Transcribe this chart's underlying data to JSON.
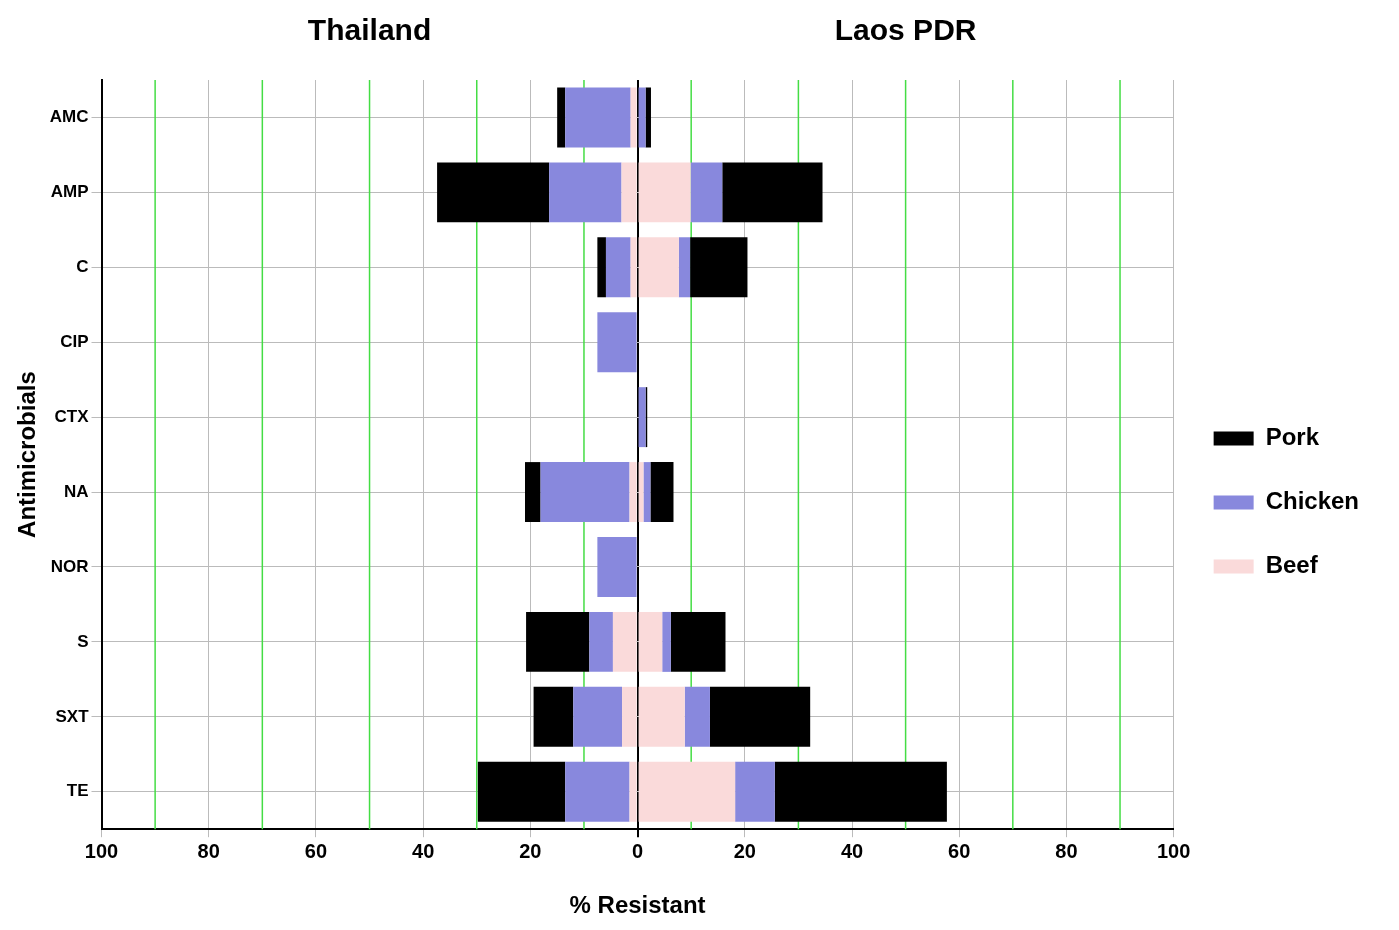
{
  "chart_data": {
    "type": "bar",
    "orientation": "horizontal",
    "stacked": true,
    "annotations": [
      "Thailand",
      "Laos PDR"
    ],
    "xlabel": "% Resistant",
    "ylabel": "Antimicrobials",
    "categories": [
      "AMC",
      "AMP",
      "C",
      "CIP",
      "CTX",
      "NA",
      "NOR",
      "S",
      "SXT",
      "TE"
    ],
    "series": [
      {
        "name": "Beef",
        "color": "#fadada",
        "values": [
          null,
          9.9,
          7.7,
          null,
          null,
          1.1,
          null,
          4.6,
          8.8,
          18.2
        ]
      },
      {
        "name": "Chicken",
        "color": "#8888dd",
        "values": [
          1.5,
          5.9,
          2.1,
          null,
          1.5,
          1.3,
          null,
          1.6,
          4.7,
          7.4
        ]
      },
      {
        "name": "Pork",
        "color": "#000000",
        "values": [
          1.0,
          18.7,
          10.7,
          null,
          0.3,
          4.3,
          null,
          10.2,
          18.7,
          32.1
        ]
      },
      {
        "color": "#fadada",
        "values": [
          -1.3,
          -3,
          -1.3,
          null,
          null,
          -1.5,
          null,
          -4.6,
          -2.9,
          -1.5
        ]
      },
      {
        "color": "#8888dd",
        "values": [
          -12.2,
          -13.5,
          -4.6,
          -7.5,
          null,
          -16.6,
          -7.5,
          -4.4,
          -9.1,
          -12.0
        ]
      },
      {
        "color": "#000000",
        "values": [
          -1.5,
          -20.9,
          -1.6,
          null,
          null,
          -2.9,
          null,
          -11.8,
          -7.4,
          -16.3
        ]
      }
    ],
    "xlim": [
      -100,
      100
    ],
    "xticks": [
      {
        "value": -100,
        "label": "100"
      },
      {
        "value": -80,
        "label": "80"
      },
      {
        "value": -60,
        "label": "60"
      },
      {
        "value": -40,
        "label": "40"
      },
      {
        "value": -20,
        "label": "20"
      },
      0,
      20,
      40,
      60,
      80,
      100
    ],
    "ref_lines": [
      {
        "axis": "x",
        "value": -90,
        "color": "#44dd44"
      },
      {
        "axis": "x",
        "value": -70,
        "color": "#44dd44"
      },
      {
        "axis": "x",
        "value": -50,
        "color": "#44dd44"
      },
      {
        "axis": "x",
        "value": -30,
        "color": "#44dd44"
      },
      {
        "axis": "x",
        "value": -10,
        "color": "#44dd44"
      },
      {
        "axis": "x",
        "value": 10,
        "color": "#44dd44"
      },
      {
        "axis": "x",
        "value": 30,
        "color": "#44dd44"
      },
      {
        "axis": "x",
        "value": 50,
        "color": "#44dd44"
      },
      {
        "axis": "x",
        "value": 70,
        "color": "#44dd44"
      },
      {
        "axis": "x",
        "value": 90,
        "color": "#44dd44"
      }
    ],
    "grid": true,
    "legend": "right"
  }
}
